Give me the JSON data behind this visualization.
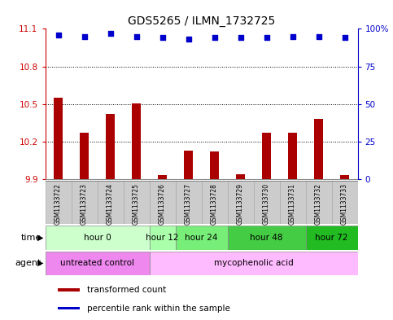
{
  "title": "GDS5265 / ILMN_1732725",
  "samples": [
    "GSM1133722",
    "GSM1133723",
    "GSM1133724",
    "GSM1133725",
    "GSM1133726",
    "GSM1133727",
    "GSM1133728",
    "GSM1133729",
    "GSM1133730",
    "GSM1133731",
    "GSM1133732",
    "GSM1133733"
  ],
  "bar_values": [
    10.55,
    10.27,
    10.42,
    10.505,
    9.93,
    10.13,
    10.12,
    9.94,
    10.27,
    10.27,
    10.38,
    9.93
  ],
  "percentile_values": [
    96,
    95,
    97,
    95,
    94,
    93,
    94,
    94,
    94,
    95,
    95,
    94
  ],
  "bar_color": "#aa0000",
  "dot_color": "#0000cc",
  "ylim_left": [
    9.9,
    11.1
  ],
  "yticks_left": [
    9.9,
    10.2,
    10.5,
    10.8,
    11.1
  ],
  "ylim_right": [
    0,
    100
  ],
  "yticks_right": [
    0,
    25,
    50,
    75,
    100
  ],
  "ytick_labels_right": [
    "0",
    "25",
    "50",
    "75",
    "100%"
  ],
  "time_groups": [
    {
      "label": "hour 0",
      "start": 0,
      "end": 3,
      "color": "#ccffcc"
    },
    {
      "label": "hour 12",
      "start": 4,
      "end": 4,
      "color": "#aaffaa"
    },
    {
      "label": "hour 24",
      "start": 5,
      "end": 6,
      "color": "#77ee77"
    },
    {
      "label": "hour 48",
      "start": 7,
      "end": 9,
      "color": "#44cc44"
    },
    {
      "label": "hour 72",
      "start": 10,
      "end": 11,
      "color": "#22bb22"
    }
  ],
  "agent_groups": [
    {
      "label": "untreated control",
      "start": 0,
      "end": 3,
      "color": "#ee88ee"
    },
    {
      "label": "mycophenolic acid",
      "start": 4,
      "end": 11,
      "color": "#ffbbff"
    }
  ],
  "legend_items": [
    {
      "label": "transformed count",
      "color": "#aa0000"
    },
    {
      "label": "percentile rank within the sample",
      "color": "#0000cc"
    }
  ],
  "background_color": "#ffffff",
  "grid_color": "#000000",
  "axis_color_left": "#cc0000",
  "axis_color_right": "#0000cc",
  "time_label": "time",
  "agent_label": "agent",
  "sample_box_color": "#cccccc",
  "bar_width": 0.35
}
